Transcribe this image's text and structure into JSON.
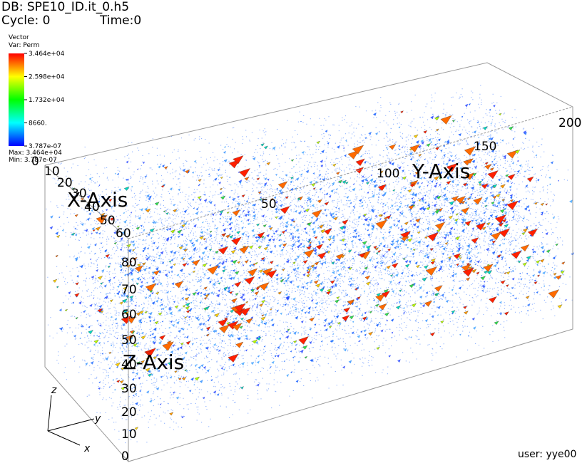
{
  "header": {
    "db": "DB: SPE10_ID.it_0.h5",
    "cycle": "Cycle: 0",
    "time": "Time:0"
  },
  "legend": {
    "type": "Vector",
    "var": "Var: Perm",
    "ticks": [
      "3.464e+04",
      "2.598e+04",
      "1.732e+04",
      "8660.",
      "3.787e-07"
    ],
    "max": "Max: 3.464e+04",
    "min": "Min: 3.787e-07"
  },
  "axes": {
    "x": {
      "title": "X-Axis",
      "ticks": [
        "0",
        "10",
        "20",
        "30",
        "40",
        "50",
        "60"
      ]
    },
    "y": {
      "title": "Y-Axis",
      "ticks": [
        "50",
        "100",
        "150",
        "200"
      ]
    },
    "z": {
      "title": "Z-Axis",
      "ticks": [
        "0",
        "10",
        "20",
        "30",
        "40",
        "50",
        "60",
        "70",
        "80"
      ]
    }
  },
  "triad": {
    "z": "z",
    "y": "y",
    "x": "x"
  },
  "user": "user: yye00"
}
